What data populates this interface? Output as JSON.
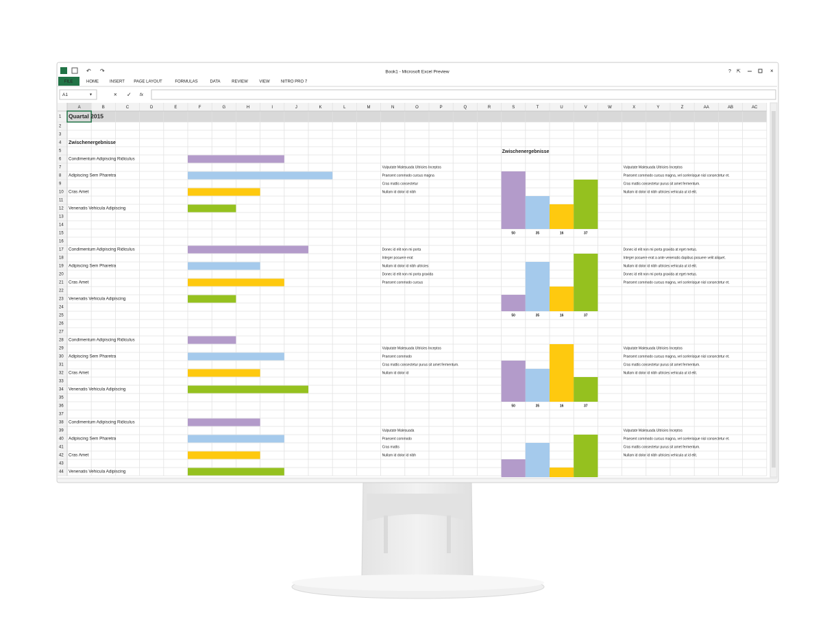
{
  "window": {
    "title": "Book1 - Microsoft Excel Preview",
    "help": "?",
    "tabs": [
      "FILE",
      "HOME",
      "INSERT",
      "PAGE LAYOUT",
      "FORMULAS",
      "DATA",
      "REVIEW",
      "VIEW",
      "NITRO PRO 7"
    ],
    "name_box": "A1",
    "fx": "fx"
  },
  "sheet": {
    "columns": [
      "A",
      "B",
      "C",
      "D",
      "E",
      "F",
      "G",
      "H",
      "I",
      "J",
      "K",
      "L",
      "M",
      "N",
      "O",
      "P",
      "Q",
      "R",
      "S",
      "T",
      "U",
      "V",
      "W",
      "X",
      "Y",
      "Z",
      "AA",
      "AB",
      "AC"
    ],
    "row_numbers": [
      1,
      2,
      3,
      4,
      5,
      6,
      7,
      8,
      9,
      10,
      11,
      12,
      13,
      14,
      15,
      16,
      17,
      18,
      19,
      20,
      21,
      22,
      23,
      24,
      25,
      26,
      27,
      28,
      29,
      30,
      31,
      32,
      33,
      34,
      35,
      36,
      37,
      38,
      39,
      40,
      41,
      42,
      43,
      44
    ],
    "title": "Quartal 2015",
    "subtitle": "Zwischenergebnisse",
    "chart_title": "Zwischenergebnisse",
    "colors": [
      "#b39bca",
      "#a5caec",
      "#fec90f",
      "#95c11f"
    ],
    "groups": [
      {
        "items": [
          {
            "label": "Condimentum Adipiscing Ridiculus",
            "bar": 4
          },
          {
            "label": "Adipiscing Sem Pharetra",
            "bar": 6
          },
          {
            "label": "Cras Amet",
            "bar": 3
          },
          {
            "label": "Venenatis Vehicula Adipiscing",
            "bar": 2
          }
        ],
        "notes": [
          "Vulputate Malesuada Ultricies Inceptos",
          "Praesent commodo cursus magna",
          "Cras mattis consectetur",
          "Nullam id dolor id nibh"
        ],
        "notes_long": [
          "Vulputate Malesuada Ultricies Inceptos",
          "Praesent commodo cursus magna, vel scelerisque nisl consectetur et.",
          "Cras mattis consectetur purus sit amet fermentum.",
          "Nullam id dolor id nibh ultricies vehicula ut id elit."
        ],
        "chart": {
          "values": [
            7,
            4,
            3,
            6
          ],
          "labels": [
            "50",
            "35",
            "16",
            "37"
          ]
        }
      },
      {
        "items": [
          {
            "label": "Condimentum Adipiscing Ridiculus",
            "bar": 5
          },
          {
            "label": "Adipiscing Sem Pharetra",
            "bar": 3
          },
          {
            "label": "Cras Amet",
            "bar": 4
          },
          {
            "label": "Venenatis Vehicula Adipiscing",
            "bar": 2
          }
        ],
        "notes": [
          "Donec id elit non mi porta",
          "Integer posuere erat",
          "Nullam id dolor id nibh ultricies",
          "Donec id elit non mi porta gravida",
          "Praesent commodo cursus"
        ],
        "notes_long": [
          "Donec id elit non mi porta gravida at eget metus.",
          "Integer posuere erat a ante venenatis dapibus posuere velit aliquet.",
          "Nullam id dolor id nibh ultricies vehicula ut id elit.",
          "Donec id elit non mi porta gravida at eget metus.",
          "Praesent commodo cursus magna, vel scelerisque nisl consectetur et."
        ],
        "chart": {
          "values": [
            2,
            6,
            3,
            7
          ],
          "labels": [
            "50",
            "35",
            "16",
            "37"
          ]
        }
      },
      {
        "items": [
          {
            "label": "Condimentum Adipiscing Ridiculus",
            "bar": 2
          },
          {
            "label": "Adipiscing Sem Pharetra",
            "bar": 4
          },
          {
            "label": "Cras Amet",
            "bar": 3
          },
          {
            "label": "Venenatis Vehicula Adipiscing",
            "bar": 5
          }
        ],
        "notes": [
          "Vulputate Malesuada Ultricies Inceptos",
          "Praesent commodo",
          "Cras mattis consectetur purus sit amet fermentum.",
          "Nullam id dolor id"
        ],
        "notes_long": [
          "Vulputate Malesuada Ultricies Inceptos",
          "Praesent commodo cursus magna, vel scelerisque nisl consectetur et.",
          "Cras mattis consectetur purus sit amet fermentum.",
          "Nullam id dolor id nibh ultricies vehicula ut id elit."
        ],
        "chart": {
          "values": [
            5,
            4,
            7,
            3
          ],
          "labels": [
            "50",
            "35",
            "16",
            "37"
          ]
        }
      },
      {
        "items": [
          {
            "label": "Condimentum Adipiscing Ridiculus",
            "bar": 3
          },
          {
            "label": "Adipiscing Sem Pharetra",
            "bar": 4
          },
          {
            "label": "Cras Amet",
            "bar": 3
          },
          {
            "label": "Venenatis Vehicula Adipiscing",
            "bar": 4
          }
        ],
        "notes": [
          "Vulputate Malesuada",
          "Praesent commodo",
          "Cras mattis",
          "Nullam id dolor id nibh"
        ],
        "notes_long": [
          "Vulputate Malesuada Ultricies Inceptos",
          "Praesent commodo cursus magna, vel scelerisque nisl consectetur et.",
          "Cras mattis consectetur purus sit amet fermentum.",
          "Nullam id dolor id nibh ultricies vehicula ut id elit."
        ],
        "chart": {
          "values": [
            3,
            5,
            2,
            6
          ]
        }
      }
    ]
  }
}
